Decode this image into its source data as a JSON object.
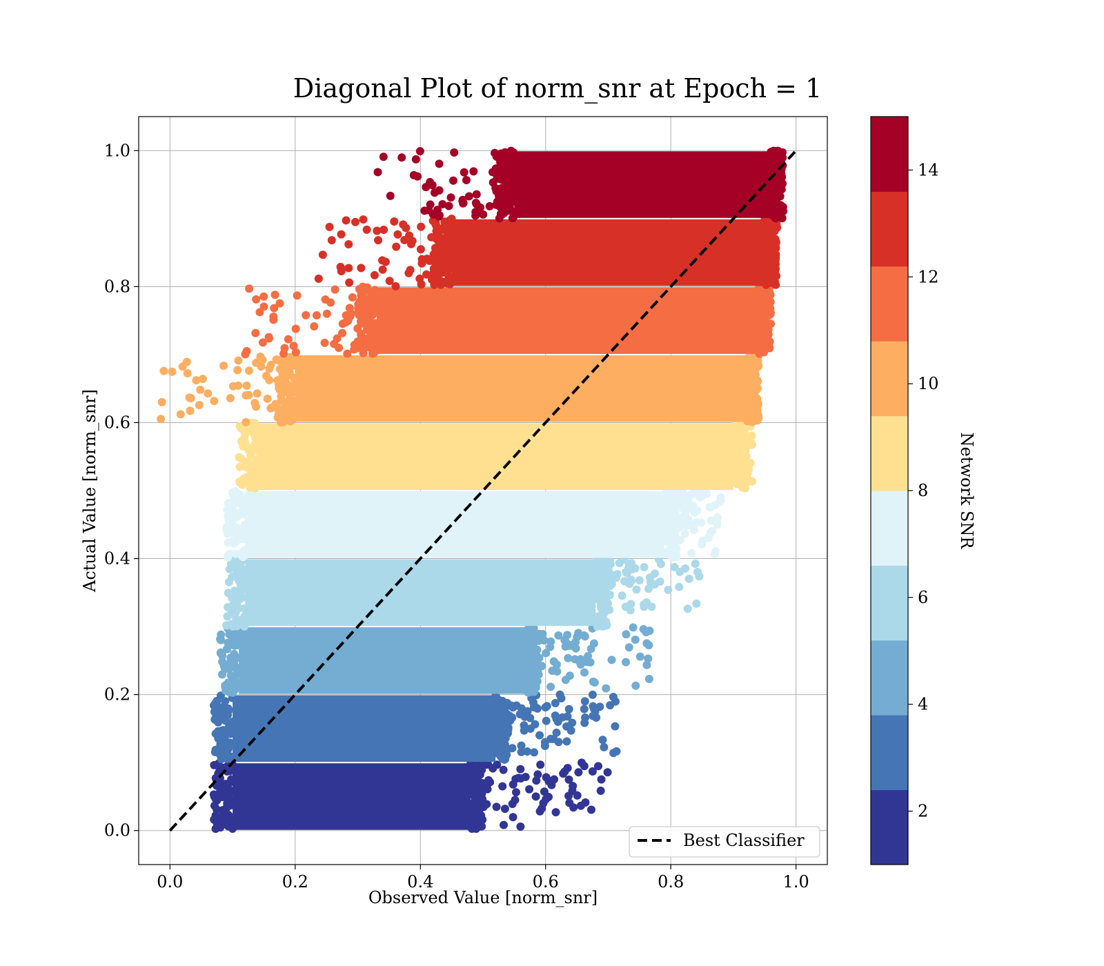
{
  "chart_data": {
    "type": "scatter",
    "title": "Diagonal Plot of norm_snr at Epoch = 1",
    "xlabel": "Observed Value [norm_snr]",
    "ylabel": "Actual Value [norm_snr]",
    "xlim": [
      -0.05,
      1.05
    ],
    "ylim": [
      -0.05,
      1.05
    ],
    "xticks": [
      "0.0",
      "0.2",
      "0.4",
      "0.6",
      "0.8",
      "1.0"
    ],
    "yticks": [
      "0.0",
      "0.2",
      "0.4",
      "0.6",
      "0.8",
      "1.0"
    ],
    "grid": true,
    "reference_line": {
      "label": "Best Classifier",
      "style": "dashed",
      "color": "#000000",
      "x": [
        0.0,
        1.0
      ],
      "y": [
        0.0,
        1.0
      ]
    },
    "legend_placement": "lower-right",
    "colorbar": {
      "label": "Network SNR",
      "range": [
        1,
        15
      ],
      "ticks": [
        "2",
        "4",
        "6",
        "8",
        "10",
        "12",
        "14"
      ],
      "colors": [
        "#313695",
        "#4575b4",
        "#74add1",
        "#abd9e9",
        "#e0f3f8",
        "#fee090",
        "#fdae61",
        "#f46d43",
        "#d73027",
        "#a50026"
      ]
    },
    "bands": [
      {
        "snr_range": [
          1.0,
          2.4
        ],
        "y_range": [
          0.0,
          0.1
        ],
        "x_core": [
          0.1,
          0.48
        ],
        "x_scatter_max": 0.7,
        "color": "#313695"
      },
      {
        "snr_range": [
          2.4,
          3.8
        ],
        "y_range": [
          0.1,
          0.2
        ],
        "x_core": [
          0.1,
          0.52
        ],
        "x_scatter_max": 0.72,
        "color": "#4575b4"
      },
      {
        "snr_range": [
          3.8,
          5.2
        ],
        "y_range": [
          0.2,
          0.3
        ],
        "x_core": [
          0.11,
          0.57
        ],
        "x_scatter_max": 0.77,
        "color": "#74add1"
      },
      {
        "snr_range": [
          5.2,
          6.6
        ],
        "y_range": [
          0.3,
          0.4
        ],
        "x_core": [
          0.12,
          0.68
        ],
        "x_scatter_max": 0.85,
        "color": "#abd9e9"
      },
      {
        "snr_range": [
          6.6,
          8.0
        ],
        "y_range": [
          0.4,
          0.5
        ],
        "x_core": [
          0.12,
          0.79
        ],
        "x_scatter_max": 0.88,
        "color": "#e0f3f8"
      },
      {
        "snr_range": [
          8.0,
          9.4
        ],
        "y_range": [
          0.5,
          0.6
        ],
        "x_core": [
          0.14,
          0.9
        ],
        "x_scatter_max": 0.93,
        "color": "#fee090"
      },
      {
        "snr_range": [
          9.4,
          10.8
        ],
        "y_range": [
          0.6,
          0.7
        ],
        "x_core": [
          0.2,
          0.92
        ],
        "x_scatter_max": 0.94,
        "color": "#fdae61"
      },
      {
        "snr_range": [
          10.8,
          12.2
        ],
        "y_range": [
          0.7,
          0.8
        ],
        "x_core": [
          0.33,
          0.94
        ],
        "x_scatter_max": 0.95,
        "color": "#f46d43"
      },
      {
        "snr_range": [
          12.2,
          13.6
        ],
        "y_range": [
          0.8,
          0.9
        ],
        "x_core": [
          0.45,
          0.95
        ],
        "x_scatter_max": 0.96,
        "color": "#d73027"
      },
      {
        "snr_range": [
          13.6,
          15.0
        ],
        "y_range": [
          0.9,
          1.0
        ],
        "x_core": [
          0.55,
          0.96
        ],
        "x_scatter_max": 0.97,
        "color": "#a50026"
      }
    ]
  }
}
